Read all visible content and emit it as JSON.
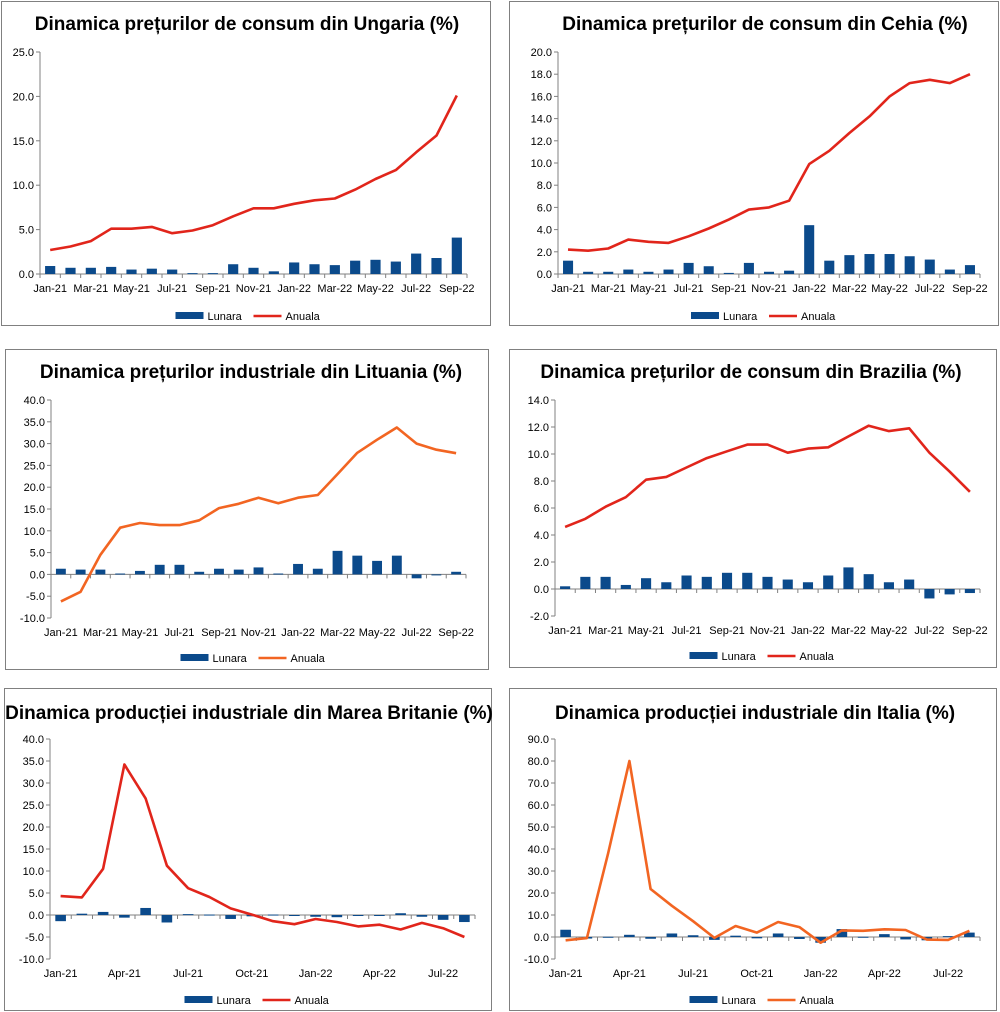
{
  "chart_data": [
    {
      "type": "bar+line",
      "title": "Dinamica prețurilor de consum din Ungaria (%)",
      "categories": [
        "Jan-21",
        "Feb-21",
        "Mar-21",
        "Apr-21",
        "May-21",
        "Jun-21",
        "Jul-21",
        "Aug-21",
        "Sep-21",
        "Oct-21",
        "Nov-21",
        "Dec-21",
        "Jan-22",
        "Feb-22",
        "Mar-22",
        "Apr-22",
        "May-22",
        "Jun-22",
        "Jul-22",
        "Aug-22",
        "Sep-22"
      ],
      "xtick_labels": [
        "Jan-21",
        "Mar-21",
        "May-21",
        "Jul-21",
        "Sep-21",
        "Nov-21",
        "Jan-22",
        "Mar-22",
        "May-22",
        "Jul-22",
        "Sep-22"
      ],
      "yticks": [
        "0.0",
        "5.0",
        "10.0",
        "15.0",
        "20.0",
        "25.0"
      ],
      "ylim": [
        0,
        25
      ],
      "series": [
        {
          "name": "Lunara",
          "kind": "bar",
          "color": "#0b4a8b",
          "values": [
            0.9,
            0.7,
            0.7,
            0.8,
            0.5,
            0.6,
            0.5,
            0.1,
            0.1,
            1.1,
            0.7,
            0.3,
            1.3,
            1.1,
            1.0,
            1.5,
            1.6,
            1.4,
            2.3,
            1.8,
            4.1
          ]
        },
        {
          "name": "Anuala",
          "kind": "line",
          "color": "#e1251b",
          "values": [
            2.7,
            3.1,
            3.7,
            5.1,
            5.1,
            5.3,
            4.6,
            4.9,
            5.5,
            6.5,
            7.4,
            7.4,
            7.9,
            8.3,
            8.5,
            9.5,
            10.7,
            11.7,
            13.7,
            15.6,
            20.1
          ]
        }
      ]
    },
    {
      "type": "bar+line",
      "title": "Dinamica prețurilor de consum din Cehia (%)",
      "categories": [
        "Jan-21",
        "Feb-21",
        "Mar-21",
        "Apr-21",
        "May-21",
        "Jun-21",
        "Jul-21",
        "Aug-21",
        "Sep-21",
        "Oct-21",
        "Nov-21",
        "Dec-21",
        "Jan-22",
        "Feb-22",
        "Mar-22",
        "Apr-22",
        "May-22",
        "Jun-22",
        "Jul-22",
        "Aug-22",
        "Sep-22"
      ],
      "xtick_labels": [
        "Jan-21",
        "Mar-21",
        "May-21",
        "Jul-21",
        "Sep-21",
        "Nov-21",
        "Jan-22",
        "Mar-22",
        "May-22",
        "Jul-22",
        "Sep-22"
      ],
      "yticks": [
        "0.0",
        "2.0",
        "4.0",
        "6.0",
        "8.0",
        "10.0",
        "12.0",
        "14.0",
        "16.0",
        "18.0",
        "20.0"
      ],
      "ylim": [
        0,
        20
      ],
      "series": [
        {
          "name": "Lunara",
          "kind": "bar",
          "color": "#0b4a8b",
          "values": [
            1.2,
            0.2,
            0.2,
            0.4,
            0.2,
            0.4,
            1.0,
            0.7,
            0.1,
            1.0,
            0.2,
            0.3,
            4.4,
            1.2,
            1.7,
            1.8,
            1.8,
            1.6,
            1.3,
            0.4,
            0.8
          ]
        },
        {
          "name": "Anuala",
          "kind": "line",
          "color": "#e1251b",
          "values": [
            2.2,
            2.1,
            2.3,
            3.1,
            2.9,
            2.8,
            3.4,
            4.1,
            4.9,
            5.8,
            6.0,
            6.6,
            9.9,
            11.1,
            12.7,
            14.2,
            16.0,
            17.2,
            17.5,
            17.2,
            18.0
          ]
        }
      ]
    },
    {
      "type": "bar+line",
      "title": "Dinamica prețurilor industriale din Lituania (%)",
      "categories": [
        "Jan-21",
        "Feb-21",
        "Mar-21",
        "Apr-21",
        "May-21",
        "Jun-21",
        "Jul-21",
        "Aug-21",
        "Sep-21",
        "Oct-21",
        "Nov-21",
        "Dec-21",
        "Jan-22",
        "Feb-22",
        "Mar-22",
        "Apr-22",
        "May-22",
        "Jun-22",
        "Jul-22",
        "Aug-22",
        "Sep-22"
      ],
      "xtick_labels": [
        "Jan-21",
        "Mar-21",
        "May-21",
        "Jul-21",
        "Sep-21",
        "Nov-21",
        "Jan-22",
        "Mar-22",
        "May-22",
        "Jul-22",
        "Sep-22"
      ],
      "yticks": [
        "-10.0",
        "-5.0",
        "0.0",
        "5.0",
        "10.0",
        "15.0",
        "20.0",
        "25.0",
        "30.0",
        "35.0",
        "40.0"
      ],
      "ylim": [
        -10,
        40
      ],
      "series": [
        {
          "name": "Lunara",
          "kind": "bar",
          "color": "#0b4a8b",
          "values": [
            1.3,
            1.1,
            1.1,
            0.2,
            0.8,
            2.2,
            2.2,
            0.6,
            1.3,
            1.1,
            1.6,
            0.2,
            2.4,
            1.3,
            5.4,
            4.3,
            3.1,
            4.3,
            -0.9,
            -0.2,
            0.6
          ]
        },
        {
          "name": "Anuala",
          "kind": "line",
          "color": "#f26522",
          "values": [
            -6.2,
            -4.0,
            4.5,
            10.7,
            11.8,
            11.3,
            11.3,
            12.4,
            15.2,
            16.2,
            17.6,
            16.3,
            17.6,
            18.2,
            23.0,
            27.9,
            30.9,
            33.7,
            30.0,
            28.6,
            27.8
          ]
        }
      ]
    },
    {
      "type": "bar+line",
      "title": "Dinamica prețurilor de consum din Brazilia (%)",
      "categories": [
        "Jan-21",
        "Feb-21",
        "Mar-21",
        "Apr-21",
        "May-21",
        "Jun-21",
        "Jul-21",
        "Aug-21",
        "Sep-21",
        "Oct-21",
        "Nov-21",
        "Dec-21",
        "Jan-22",
        "Feb-22",
        "Mar-22",
        "Apr-22",
        "May-22",
        "Jun-22",
        "Jul-22",
        "Aug-22",
        "Sep-22"
      ],
      "xtick_labels": [
        "Jan-21",
        "Mar-21",
        "May-21",
        "Jul-21",
        "Sep-21",
        "Nov-21",
        "Jan-22",
        "Mar-22",
        "May-22",
        "Jul-22",
        "Sep-22"
      ],
      "yticks": [
        "-2.0",
        "0.0",
        "2.0",
        "4.0",
        "6.0",
        "8.0",
        "10.0",
        "12.0",
        "14.0"
      ],
      "ylim": [
        -2,
        14
      ],
      "series": [
        {
          "name": "Lunara",
          "kind": "bar",
          "color": "#0b4a8b",
          "values": [
            0.2,
            0.9,
            0.9,
            0.3,
            0.8,
            0.5,
            1.0,
            0.9,
            1.2,
            1.2,
            0.9,
            0.7,
            0.5,
            1.0,
            1.6,
            1.1,
            0.5,
            0.7,
            -0.7,
            -0.4,
            -0.3
          ]
        },
        {
          "name": "Anuala",
          "kind": "line",
          "color": "#e1251b",
          "values": [
            4.6,
            5.2,
            6.1,
            6.8,
            8.1,
            8.3,
            9.0,
            9.7,
            10.2,
            10.7,
            10.7,
            10.1,
            10.4,
            10.5,
            11.3,
            12.1,
            11.7,
            11.9,
            10.1,
            8.7,
            7.2
          ]
        }
      ]
    },
    {
      "type": "bar+line",
      "title": "Dinamica producției industriale din Marea Britanie (%)",
      "categories": [
        "Jan-21",
        "Feb-21",
        "Mar-21",
        "Apr-21",
        "May-21",
        "Jun-21",
        "Jul-21",
        "Aug-21",
        "Sep-21",
        "Oct-21",
        "Nov-21",
        "Dec-21",
        "Jan-22",
        "Feb-22",
        "Mar-22",
        "Apr-22",
        "May-22",
        "Jun-22",
        "Jul-22",
        "Aug-22"
      ],
      "xtick_labels": [
        "Jan-21",
        "Apr-21",
        "Jul-21",
        "Oct-21",
        "Jan-22",
        "Apr-22",
        "Jul-22"
      ],
      "yticks": [
        "-10.0",
        "-5.0",
        "0.0",
        "5.0",
        "10.0",
        "15.0",
        "20.0",
        "25.0",
        "30.0",
        "35.0",
        "40.0"
      ],
      "ylim": [
        -10,
        40
      ],
      "series": [
        {
          "name": "Lunara",
          "kind": "bar",
          "color": "#0b4a8b",
          "values": [
            -1.4,
            0.3,
            0.7,
            -0.6,
            1.6,
            -1.7,
            0.2,
            0.1,
            -0.9,
            -0.3,
            0.1,
            0.0,
            -0.4,
            -0.5,
            -0.1,
            -0.1,
            0.4,
            -0.4,
            -1.1,
            -1.6
          ]
        },
        {
          "name": "Anuala",
          "kind": "line",
          "color": "#e1251b",
          "values": [
            4.3,
            4.0,
            10.5,
            34.2,
            26.5,
            11.2,
            6.1,
            4.1,
            1.5,
            0.1,
            -1.4,
            -2.1,
            -0.9,
            -1.6,
            -2.6,
            -2.2,
            -3.3,
            -1.8,
            -3.0,
            -5.0
          ]
        }
      ]
    },
    {
      "type": "bar+line",
      "title": "Dinamica producției industriale din Italia (%)",
      "categories": [
        "Jan-21",
        "Feb-21",
        "Mar-21",
        "Apr-21",
        "May-21",
        "Jun-21",
        "Jul-21",
        "Aug-21",
        "Sep-21",
        "Oct-21",
        "Nov-21",
        "Dec-21",
        "Jan-22",
        "Feb-22",
        "Mar-22",
        "Apr-22",
        "May-22",
        "Jun-22",
        "Jul-22",
        "Aug-22"
      ],
      "xtick_labels": [
        "Jan-21",
        "Apr-21",
        "Jul-21",
        "Oct-21",
        "Jan-22",
        "Apr-22",
        "Jul-22"
      ],
      "yticks": [
        "-10.0",
        "0.0",
        "10.0",
        "20.0",
        "30.0",
        "40.0",
        "50.0",
        "60.0",
        "70.0",
        "80.0",
        "90.0"
      ],
      "ylim": [
        -10,
        90
      ],
      "series": [
        {
          "name": "Lunara",
          "kind": "bar",
          "color": "#0b4a8b",
          "values": [
            3.3,
            -0.7,
            0.1,
            1.0,
            -0.8,
            1.6,
            0.8,
            -1.3,
            0.6,
            -0.6,
            1.6,
            -0.9,
            -2.6,
            3.6,
            0.1,
            1.3,
            -1.1,
            -1.5,
            0.4,
            2.0
          ]
        },
        {
          "name": "Anuala",
          "kind": "line",
          "color": "#f26522",
          "values": [
            -1.5,
            -0.5,
            38.0,
            80.0,
            21.8,
            14.2,
            7.2,
            -0.4,
            5.0,
            2.0,
            6.8,
            4.5,
            -2.6,
            3.0,
            2.8,
            3.5,
            3.2,
            -1.2,
            -1.3,
            2.8
          ]
        }
      ]
    }
  ]
}
